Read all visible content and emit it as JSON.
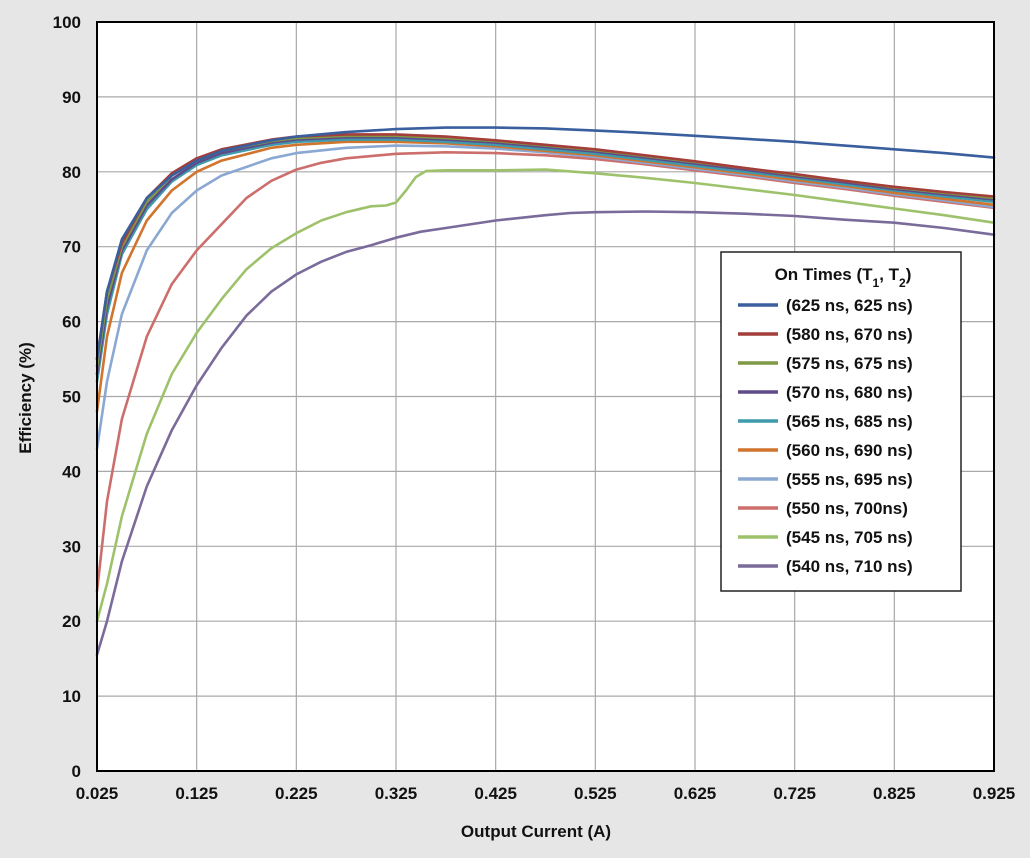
{
  "chart_data": {
    "type": "line",
    "xlabel": "Output Current (A)",
    "ylabel": "Efficiency (%)",
    "xlim": [
      0.025,
      0.925
    ],
    "ylim": [
      0,
      100
    ],
    "xticks": [
      0.025,
      0.125,
      0.225,
      0.325,
      0.425,
      0.525,
      0.625,
      0.725,
      0.825,
      0.925
    ],
    "xtick_labels": [
      "0.025",
      "0.125",
      "0.225",
      "0.325",
      "0.425",
      "0.525",
      "0.625",
      "0.725",
      "0.825",
      "0.925"
    ],
    "yticks": [
      0,
      10,
      20,
      30,
      40,
      50,
      60,
      70,
      80,
      90,
      100
    ],
    "ytick_labels": [
      "0",
      "10",
      "20",
      "30",
      "40",
      "50",
      "60",
      "70",
      "80",
      "90",
      "100"
    ],
    "grid": true,
    "legend_position": "right",
    "legend": {
      "title_main": "On Times (T",
      "title_sub1": "1",
      "title_mid": ", T",
      "title_sub2": "2",
      "title_end": ")"
    },
    "series": [
      {
        "name": "(625 ns, 625 ns)",
        "color": "#3a5f9f",
        "points": [
          [
            0.025,
            55
          ],
          [
            0.035,
            64
          ],
          [
            0.05,
            71
          ],
          [
            0.075,
            76.5
          ],
          [
            0.1,
            79.5
          ],
          [
            0.125,
            81.5
          ],
          [
            0.15,
            82.8
          ],
          [
            0.2,
            84.2
          ],
          [
            0.225,
            84.7
          ],
          [
            0.275,
            85.3
          ],
          [
            0.325,
            85.7
          ],
          [
            0.375,
            85.9
          ],
          [
            0.425,
            85.9
          ],
          [
            0.475,
            85.8
          ],
          [
            0.525,
            85.5
          ],
          [
            0.575,
            85.2
          ],
          [
            0.625,
            84.8
          ],
          [
            0.675,
            84.4
          ],
          [
            0.725,
            84
          ],
          [
            0.775,
            83.5
          ],
          [
            0.825,
            83
          ],
          [
            0.875,
            82.5
          ],
          [
            0.925,
            81.9
          ]
        ]
      },
      {
        "name": "(580 ns, 670 ns)",
        "color": "#a33e3a",
        "points": [
          [
            0.025,
            55
          ],
          [
            0.035,
            64
          ],
          [
            0.05,
            70.5
          ],
          [
            0.075,
            76.5
          ],
          [
            0.1,
            79.8
          ],
          [
            0.125,
            81.8
          ],
          [
            0.15,
            83
          ],
          [
            0.2,
            84.3
          ],
          [
            0.225,
            84.7
          ],
          [
            0.275,
            85
          ],
          [
            0.325,
            85
          ],
          [
            0.375,
            84.7
          ],
          [
            0.425,
            84.2
          ],
          [
            0.475,
            83.6
          ],
          [
            0.525,
            83
          ],
          [
            0.575,
            82.2
          ],
          [
            0.625,
            81.4
          ],
          [
            0.675,
            80.5
          ],
          [
            0.725,
            79.7
          ],
          [
            0.775,
            78.8
          ],
          [
            0.825,
            78
          ],
          [
            0.875,
            77.3
          ],
          [
            0.925,
            76.7
          ]
        ]
      },
      {
        "name": "(575 ns, 675 ns)",
        "color": "#7f9a44",
        "points": [
          [
            0.025,
            54
          ],
          [
            0.035,
            63
          ],
          [
            0.05,
            70
          ],
          [
            0.075,
            76
          ],
          [
            0.1,
            79.5
          ],
          [
            0.125,
            81.5
          ],
          [
            0.15,
            82.8
          ],
          [
            0.2,
            84.1
          ],
          [
            0.225,
            84.5
          ],
          [
            0.275,
            84.8
          ],
          [
            0.325,
            84.8
          ],
          [
            0.375,
            84.5
          ],
          [
            0.425,
            84.1
          ],
          [
            0.475,
            83.5
          ],
          [
            0.525,
            82.9
          ],
          [
            0.575,
            82.1
          ],
          [
            0.625,
            81.3
          ],
          [
            0.675,
            80.5
          ],
          [
            0.725,
            79.6
          ],
          [
            0.775,
            78.8
          ],
          [
            0.825,
            77.9
          ],
          [
            0.875,
            77.2
          ],
          [
            0.925,
            76.5
          ]
        ]
      },
      {
        "name": "(570 ns, 680 ns)",
        "color": "#5e4a8a",
        "points": [
          [
            0.025,
            53
          ],
          [
            0.035,
            62
          ],
          [
            0.05,
            69.5
          ],
          [
            0.075,
            75.5
          ],
          [
            0.1,
            79
          ],
          [
            0.125,
            81.2
          ],
          [
            0.15,
            82.5
          ],
          [
            0.2,
            83.9
          ],
          [
            0.225,
            84.3
          ],
          [
            0.275,
            84.6
          ],
          [
            0.325,
            84.6
          ],
          [
            0.375,
            84.3
          ],
          [
            0.425,
            83.9
          ],
          [
            0.475,
            83.3
          ],
          [
            0.525,
            82.7
          ],
          [
            0.575,
            81.9
          ],
          [
            0.625,
            81.1
          ],
          [
            0.675,
            80.3
          ],
          [
            0.725,
            79.4
          ],
          [
            0.775,
            78.6
          ],
          [
            0.825,
            77.7
          ],
          [
            0.875,
            77
          ],
          [
            0.925,
            76.3
          ]
        ]
      },
      {
        "name": "(565 ns, 685 ns)",
        "color": "#3f9aab",
        "points": [
          [
            0.025,
            52
          ],
          [
            0.035,
            61
          ],
          [
            0.05,
            69
          ],
          [
            0.075,
            75
          ],
          [
            0.1,
            78.7
          ],
          [
            0.125,
            80.9
          ],
          [
            0.15,
            82.2
          ],
          [
            0.2,
            83.6
          ],
          [
            0.225,
            84
          ],
          [
            0.275,
            84.3
          ],
          [
            0.325,
            84.3
          ],
          [
            0.375,
            84
          ],
          [
            0.425,
            83.6
          ],
          [
            0.475,
            83
          ],
          [
            0.525,
            82.4
          ],
          [
            0.575,
            81.6
          ],
          [
            0.625,
            80.8
          ],
          [
            0.675,
            80
          ],
          [
            0.725,
            79.2
          ],
          [
            0.775,
            78.3
          ],
          [
            0.825,
            77.5
          ],
          [
            0.875,
            76.7
          ],
          [
            0.925,
            76
          ]
        ]
      },
      {
        "name": "(560 ns, 690 ns)",
        "color": "#d1742e",
        "points": [
          [
            0.025,
            48
          ],
          [
            0.035,
            58
          ],
          [
            0.05,
            66.5
          ],
          [
            0.075,
            73.5
          ],
          [
            0.1,
            77.5
          ],
          [
            0.125,
            80
          ],
          [
            0.15,
            81.5
          ],
          [
            0.2,
            83.2
          ],
          [
            0.225,
            83.6
          ],
          [
            0.275,
            84
          ],
          [
            0.325,
            84
          ],
          [
            0.375,
            83.8
          ],
          [
            0.425,
            83.4
          ],
          [
            0.475,
            82.8
          ],
          [
            0.525,
            82.2
          ],
          [
            0.575,
            81.4
          ],
          [
            0.625,
            80.6
          ],
          [
            0.675,
            79.8
          ],
          [
            0.725,
            78.9
          ],
          [
            0.775,
            78.1
          ],
          [
            0.825,
            77.2
          ],
          [
            0.875,
            76.4
          ],
          [
            0.925,
            75.6
          ]
        ]
      },
      {
        "name": "(555 ns, 695 ns)",
        "color": "#8aa8d2",
        "points": [
          [
            0.025,
            43
          ],
          [
            0.035,
            52
          ],
          [
            0.05,
            61
          ],
          [
            0.075,
            69.5
          ],
          [
            0.1,
            74.5
          ],
          [
            0.125,
            77.5
          ],
          [
            0.15,
            79.5
          ],
          [
            0.2,
            81.8
          ],
          [
            0.225,
            82.5
          ],
          [
            0.275,
            83.2
          ],
          [
            0.325,
            83.5
          ],
          [
            0.375,
            83.4
          ],
          [
            0.425,
            83.1
          ],
          [
            0.475,
            82.6
          ],
          [
            0.525,
            82
          ],
          [
            0.575,
            81.2
          ],
          [
            0.625,
            80.4
          ],
          [
            0.675,
            79.6
          ],
          [
            0.725,
            78.7
          ],
          [
            0.775,
            77.9
          ],
          [
            0.825,
            77
          ],
          [
            0.875,
            76.2
          ],
          [
            0.925,
            75.3
          ]
        ]
      },
      {
        "name": "(550 ns, 700ns)",
        "color": "#cc6f6c",
        "points": [
          [
            0.025,
            24
          ],
          [
            0.035,
            36
          ],
          [
            0.05,
            47
          ],
          [
            0.075,
            58
          ],
          [
            0.1,
            65
          ],
          [
            0.125,
            69.5
          ],
          [
            0.15,
            73
          ],
          [
            0.175,
            76.5
          ],
          [
            0.2,
            78.8
          ],
          [
            0.225,
            80.3
          ],
          [
            0.25,
            81.2
          ],
          [
            0.275,
            81.8
          ],
          [
            0.325,
            82.4
          ],
          [
            0.375,
            82.6
          ],
          [
            0.425,
            82.5
          ],
          [
            0.475,
            82.2
          ],
          [
            0.525,
            81.7
          ],
          [
            0.575,
            81
          ],
          [
            0.625,
            80.2
          ],
          [
            0.675,
            79.4
          ],
          [
            0.725,
            78.5
          ],
          [
            0.775,
            77.7
          ],
          [
            0.825,
            76.8
          ],
          [
            0.875,
            76
          ],
          [
            0.925,
            75.2
          ]
        ]
      },
      {
        "name": "(545 ns, 705 ns)",
        "color": "#9ec26b",
        "points": [
          [
            0.025,
            20
          ],
          [
            0.035,
            25
          ],
          [
            0.05,
            34
          ],
          [
            0.075,
            45
          ],
          [
            0.1,
            53
          ],
          [
            0.125,
            58.5
          ],
          [
            0.15,
            63
          ],
          [
            0.175,
            67
          ],
          [
            0.2,
            69.8
          ],
          [
            0.225,
            71.8
          ],
          [
            0.25,
            73.5
          ],
          [
            0.275,
            74.6
          ],
          [
            0.3,
            75.4
          ],
          [
            0.315,
            75.5
          ],
          [
            0.325,
            75.9
          ],
          [
            0.335,
            77.5
          ],
          [
            0.345,
            79.3
          ],
          [
            0.355,
            80.1
          ],
          [
            0.375,
            80.2
          ],
          [
            0.425,
            80.2
          ],
          [
            0.475,
            80.3
          ],
          [
            0.525,
            79.8
          ],
          [
            0.575,
            79.2
          ],
          [
            0.625,
            78.5
          ],
          [
            0.675,
            77.7
          ],
          [
            0.725,
            76.9
          ],
          [
            0.775,
            76
          ],
          [
            0.825,
            75.1
          ],
          [
            0.875,
            74.2
          ],
          [
            0.925,
            73.2
          ]
        ]
      },
      {
        "name": "(540 ns, 710 ns)",
        "color": "#7a6b9a",
        "points": [
          [
            0.025,
            15.5
          ],
          [
            0.035,
            20
          ],
          [
            0.05,
            28
          ],
          [
            0.075,
            38
          ],
          [
            0.1,
            45.5
          ],
          [
            0.125,
            51.5
          ],
          [
            0.15,
            56.5
          ],
          [
            0.175,
            60.8
          ],
          [
            0.2,
            64
          ],
          [
            0.225,
            66.3
          ],
          [
            0.25,
            68
          ],
          [
            0.275,
            69.3
          ],
          [
            0.3,
            70.2
          ],
          [
            0.325,
            71.2
          ],
          [
            0.35,
            72
          ],
          [
            0.375,
            72.5
          ],
          [
            0.425,
            73.5
          ],
          [
            0.475,
            74.2
          ],
          [
            0.5,
            74.5
          ],
          [
            0.525,
            74.6
          ],
          [
            0.575,
            74.7
          ],
          [
            0.625,
            74.6
          ],
          [
            0.675,
            74.4
          ],
          [
            0.725,
            74.1
          ],
          [
            0.775,
            73.6
          ],
          [
            0.825,
            73.2
          ],
          [
            0.875,
            72.5
          ],
          [
            0.925,
            71.6
          ]
        ]
      }
    ]
  }
}
